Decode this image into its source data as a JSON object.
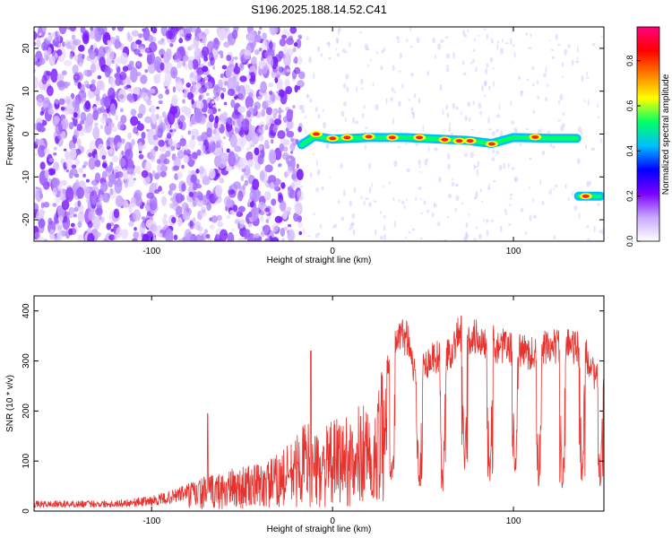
{
  "title": "S196.2025.188.14.52.C41",
  "chart_data": [
    {
      "type": "heatmap",
      "xlabel": "Height of straight line (km)",
      "ylabel": "Frequency (Hz)",
      "xlim": [
        -165,
        150
      ],
      "ylim": [
        -25,
        25
      ],
      "xticks": [
        -100,
        0,
        100
      ],
      "yticks": [
        -20,
        -10,
        0,
        10,
        20
      ],
      "colorbar": {
        "label": "Normalized spectral amplitude",
        "range": [
          0,
          0.95
        ],
        "ticks": [
          0.0,
          0.2,
          0.4,
          0.6,
          0.8
        ],
        "colors": [
          "#ffffff",
          "#c9a8ff",
          "#7a00ff",
          "#0000ff",
          "#00bfff",
          "#00ff66",
          "#ffff00",
          "#ff7f00",
          "#ff0000",
          "#ff0080"
        ]
      },
      "features": {
        "noise_region_x": [
          -165,
          -17
        ],
        "carrier_band": [
          {
            "x": -17,
            "f": -2.5
          },
          {
            "x": -10,
            "f": -0.5
          },
          {
            "x": 0,
            "f": -1.2
          },
          {
            "x": 20,
            "f": -0.8
          },
          {
            "x": 40,
            "f": -0.8
          },
          {
            "x": 60,
            "f": -1.2
          },
          {
            "x": 75,
            "f": -1.5
          },
          {
            "x": 88,
            "f": -2.2
          },
          {
            "x": 100,
            "f": -0.8
          },
          {
            "x": 120,
            "f": -1.0
          },
          {
            "x": 135,
            "f": -1.0
          }
        ],
        "offset_segment": {
          "x": [
            136,
            148
          ],
          "f": -14.5
        },
        "hot_spots": [
          {
            "x": -9,
            "f": 0.0
          },
          {
            "x": 0,
            "f": -1.0
          },
          {
            "x": 8,
            "f": -0.8
          },
          {
            "x": 20,
            "f": -0.6
          },
          {
            "x": 33,
            "f": -0.8
          },
          {
            "x": 48,
            "f": -0.8
          },
          {
            "x": 62,
            "f": -1.3
          },
          {
            "x": 70,
            "f": -1.6
          },
          {
            "x": 76,
            "f": -1.6
          },
          {
            "x": 88,
            "f": -2.3
          },
          {
            "x": 112,
            "f": -0.7
          },
          {
            "x": 140,
            "f": -14.5
          }
        ]
      }
    },
    {
      "type": "line",
      "xlabel": "Height of straight line (km)",
      "ylabel": "SNR (10 * v/v)",
      "xlim": [
        -165,
        150
      ],
      "ylim": [
        0,
        430
      ],
      "xticks": [
        -100,
        0,
        100
      ],
      "yticks": [
        0,
        100,
        200,
        300,
        400
      ],
      "color": "#e8322e",
      "envelope": [
        {
          "x": -165,
          "y": 20
        },
        {
          "x": -120,
          "y": 22
        },
        {
          "x": -100,
          "y": 30
        },
        {
          "x": -90,
          "y": 40
        },
        {
          "x": -75,
          "y": 65
        },
        {
          "x": -60,
          "y": 80
        },
        {
          "x": -50,
          "y": 90
        },
        {
          "x": -40,
          "y": 95
        },
        {
          "x": -30,
          "y": 115
        },
        {
          "x": -20,
          "y": 150
        },
        {
          "x": -15,
          "y": 190
        },
        {
          "x": -10,
          "y": 150
        },
        {
          "x": 0,
          "y": 180
        },
        {
          "x": 10,
          "y": 200
        },
        {
          "x": 20,
          "y": 230
        },
        {
          "x": 25,
          "y": 260
        },
        {
          "x": 30,
          "y": 320
        },
        {
          "x": 35,
          "y": 385
        },
        {
          "x": 42,
          "y": 390
        },
        {
          "x": 45,
          "y": 310
        },
        {
          "x": 50,
          "y": 320
        },
        {
          "x": 55,
          "y": 340
        },
        {
          "x": 65,
          "y": 350
        },
        {
          "x": 70,
          "y": 395
        },
        {
          "x": 80,
          "y": 385
        },
        {
          "x": 90,
          "y": 370
        },
        {
          "x": 100,
          "y": 360
        },
        {
          "x": 110,
          "y": 350
        },
        {
          "x": 120,
          "y": 365
        },
        {
          "x": 130,
          "y": 370
        },
        {
          "x": 140,
          "y": 350
        },
        {
          "x": 145,
          "y": 300
        },
        {
          "x": 150,
          "y": 280
        }
      ],
      "dropouts": [
        {
          "x": 12,
          "y": 100
        },
        {
          "x": 22,
          "y": 30
        },
        {
          "x": 33,
          "y": 60
        },
        {
          "x": 48,
          "y": 50
        },
        {
          "x": 61,
          "y": 40
        },
        {
          "x": 73,
          "y": 80
        },
        {
          "x": 87,
          "y": 60
        },
        {
          "x": 101,
          "y": 80
        },
        {
          "x": 114,
          "y": 50
        },
        {
          "x": 127,
          "y": 40
        },
        {
          "x": 138,
          "y": 60
        },
        {
          "x": 148,
          "y": 50
        }
      ],
      "spikes": [
        {
          "x": -69,
          "y": 195
        },
        {
          "x": -12,
          "y": 320
        }
      ]
    }
  ]
}
